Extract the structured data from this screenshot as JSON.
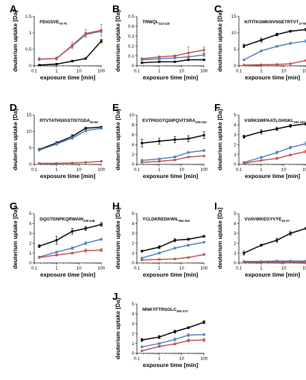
{
  "colors": {
    "black": "#000000",
    "blue": "#4F81BD",
    "red": "#C0504D"
  },
  "chart_data": [
    {
      "type": "line",
      "panel": "A",
      "peptide": "FEIGSVE",
      "peptide_sub": "70-76",
      "xlabel": "exposure time [min]",
      "ylabel": "deuterium uptake [Da]",
      "x": [
        0.167,
        1,
        5,
        20,
        100
      ],
      "xscale": "log",
      "xlim": [
        0.1,
        100
      ],
      "xticks": [
        "0.1",
        "1",
        "10",
        "100"
      ],
      "ylim": [
        0,
        1.5
      ],
      "yticks": [
        "0",
        "0.5",
        "1",
        "1.5"
      ],
      "series": [
        {
          "color": "black",
          "values": [
            0.02,
            0.05,
            0.14,
            0.22,
            0.75
          ],
          "errors": [
            0.02,
            0.02,
            0.03,
            0.03,
            0.05
          ]
        },
        {
          "color": "blue",
          "values": [
            0.2,
            0.22,
            0.6,
            0.95,
            1.05
          ],
          "errors": [
            0.02,
            0.03,
            0.05,
            0.06,
            0.05
          ]
        },
        {
          "color": "red",
          "values": [
            0.2,
            0.22,
            0.62,
            0.98,
            1.08
          ],
          "errors": [
            0.05,
            0.05,
            0.1,
            0.12,
            0.18
          ]
        }
      ]
    },
    {
      "type": "line",
      "panel": "B",
      "peptide": "TRWQL",
      "peptide_sub": "114-118",
      "xlabel": "exposure time [min]",
      "ylabel": "deuterium uptake [Da]",
      "x": [
        0.167,
        1,
        5,
        20,
        100
      ],
      "xscale": "log",
      "xlim": [
        0.1,
        100
      ],
      "xticks": [
        "0.1",
        "1",
        "10",
        "100"
      ],
      "ylim": [
        0,
        0.5
      ],
      "yticks": [
        "0",
        "0.1",
        "0.2",
        "0.3",
        "0.4",
        "0.5"
      ],
      "series": [
        {
          "color": "black",
          "values": [
            0.03,
            0.04,
            0.04,
            0.06,
            0.06
          ],
          "errors": [
            0.005,
            0.005,
            0.005,
            0.008,
            0.008
          ]
        },
        {
          "color": "blue",
          "values": [
            0.06,
            0.07,
            0.08,
            0.09,
            0.11
          ],
          "errors": [
            0.01,
            0.01,
            0.01,
            0.01,
            0.015
          ]
        },
        {
          "color": "red",
          "values": [
            0.07,
            0.09,
            0.1,
            0.13,
            0.16
          ],
          "errors": [
            0.01,
            0.01,
            0.01,
            0.06,
            0.03
          ]
        }
      ]
    },
    {
      "type": "line",
      "panel": "C",
      "peptide": "KITITKGMKNVNSETRTVT",
      "peptide_sub": "37-55",
      "xlabel": "exposure time [min]",
      "ylabel": "deuterium uptake [Da]",
      "x": [
        0.167,
        1,
        5,
        20,
        100
      ],
      "xscale": "log",
      "xlim": [
        0.1,
        100
      ],
      "xticks": [
        "0.1",
        "1",
        "10",
        "100"
      ],
      "ylim": [
        0,
        15
      ],
      "yticks": [
        "0",
        "5",
        "10",
        "15"
      ],
      "series": [
        {
          "color": "black",
          "values": [
            6.0,
            7.8,
            9.5,
            10.5,
            11.0
          ],
          "errors": [
            0.5,
            0.6,
            0.4,
            0.3,
            0.4
          ]
        },
        {
          "color": "blue",
          "values": [
            1.8,
            4.5,
            5.9,
            6.8,
            7.5
          ],
          "errors": [
            0.2,
            0.3,
            0.3,
            0.3,
            0.4
          ]
        },
        {
          "color": "red",
          "values": [
            0.2,
            0.3,
            0.4,
            0.6,
            1.6
          ],
          "errors": [
            0.05,
            0.05,
            0.05,
            0.1,
            0.2
          ]
        }
      ]
    },
    {
      "type": "line",
      "panel": "D",
      "peptide": "RTVTATHSIGSTISTGDA",
      "peptide_sub": "52-69",
      "xlabel": "exposure time [min]",
      "ylabel": "deuterium uptake [Da]",
      "x": [
        0.167,
        1,
        5,
        20,
        100
      ],
      "xscale": "log",
      "xlim": [
        0.1,
        100
      ],
      "xticks": [
        "0.1",
        "1",
        "10",
        "100"
      ],
      "ylim": [
        0,
        15
      ],
      "yticks": [
        "0",
        "5",
        "10",
        "15"
      ],
      "series": [
        {
          "color": "black",
          "values": [
            4.5,
            6.5,
            8.5,
            11.0,
            11.3
          ],
          "errors": [
            0.3,
            0.4,
            0.5,
            0.3,
            0.3
          ]
        },
        {
          "color": "blue",
          "values": [
            4.3,
            6.2,
            8.0,
            10.2,
            11.0
          ],
          "errors": [
            0.3,
            0.4,
            0.4,
            0.3,
            0.3
          ]
        },
        {
          "color": "red",
          "values": [
            0.3,
            0.3,
            0.4,
            0.6,
            0.9
          ],
          "errors": [
            0.05,
            0.05,
            0.05,
            0.05,
            0.1
          ]
        }
      ]
    },
    {
      "type": "line",
      "panel": "E",
      "peptide": "EVTPIGGTQSIPQVITSRA",
      "peptide_sub": "135-153",
      "xlabel": "exposure time [min]",
      "ylabel": "deuterium uptake [Da]",
      "x": [
        0.167,
        1,
        5,
        20,
        100
      ],
      "xscale": "log",
      "xlim": [
        0.1,
        100
      ],
      "xticks": [
        "0.1",
        "1",
        "10",
        "100"
      ],
      "ylim": [
        0,
        10
      ],
      "yticks": [
        "0",
        "2",
        "4",
        "6",
        "8",
        "10"
      ],
      "series": [
        {
          "color": "black",
          "values": [
            4.3,
            4.7,
            5.0,
            5.2,
            5.9
          ],
          "errors": [
            0.8,
            0.6,
            0.6,
            0.6,
            0.7
          ]
        },
        {
          "color": "blue",
          "values": [
            0.8,
            1.1,
            1.5,
            2.4,
            2.8
          ],
          "errors": [
            0.2,
            0.2,
            0.2,
            0.2,
            0.2
          ]
        },
        {
          "color": "red",
          "values": [
            0.4,
            0.6,
            0.9,
            1.5,
            1.7
          ],
          "errors": [
            0.1,
            0.1,
            0.1,
            0.1,
            0.1
          ]
        }
      ]
    },
    {
      "type": "line",
      "panel": "F",
      "peptide": "VSRKSWPAATLGHSKL",
      "peptide_sub": "182-197",
      "xlabel": "exposure time [min]",
      "ylabel": "deuterium uptake [Da]",
      "x": [
        0.167,
        1,
        5,
        20,
        100
      ],
      "xscale": "log",
      "xlim": [
        0.1,
        100
      ],
      "xticks": [
        "0.1",
        "1",
        "10",
        "100"
      ],
      "ylim": [
        0,
        5
      ],
      "yticks": [
        "0",
        "1",
        "2",
        "3",
        "4",
        "5"
      ],
      "series": [
        {
          "color": "black",
          "values": [
            2.8,
            3.3,
            3.6,
            3.9,
            4.1
          ],
          "errors": [
            0.15,
            0.2,
            0.15,
            0.15,
            0.15
          ]
        },
        {
          "color": "blue",
          "values": [
            0.2,
            0.7,
            1.2,
            1.7,
            2.1
          ],
          "errors": [
            0.05,
            0.1,
            0.15,
            0.15,
            0.2
          ]
        },
        {
          "color": "red",
          "values": [
            0.1,
            0.4,
            0.6,
            0.95,
            1.3
          ],
          "errors": [
            0.05,
            0.05,
            0.1,
            0.1,
            0.15
          ]
        }
      ]
    },
    {
      "type": "line",
      "panel": "G",
      "peptide": "DQGTDNPKQRWAIN",
      "peptide_sub": "235-248",
      "xlabel": "exposure time [min]",
      "ylabel": "deuterium uptake [Da]",
      "x": [
        0.167,
        1,
        5,
        20,
        100
      ],
      "xscale": "log",
      "xlim": [
        0.1,
        100
      ],
      "xticks": [
        "0.1",
        "1",
        "10",
        "100"
      ],
      "ylim": [
        0,
        5
      ],
      "yticks": [
        "0",
        "1",
        "2",
        "3",
        "4",
        "5"
      ],
      "series": [
        {
          "color": "black",
          "values": [
            1.7,
            2.3,
            3.2,
            3.5,
            3.9
          ],
          "errors": [
            0.15,
            0.4,
            0.3,
            0.2,
            0.2
          ]
        },
        {
          "color": "blue",
          "values": [
            0.6,
            1.1,
            1.5,
            2.0,
            2.4
          ],
          "errors": [
            0.05,
            0.1,
            0.15,
            0.15,
            0.1
          ]
        },
        {
          "color": "red",
          "values": [
            0.55,
            0.8,
            1.0,
            1.25,
            1.3
          ],
          "errors": [
            0.05,
            0.1,
            0.1,
            0.15,
            0.15
          ]
        }
      ]
    },
    {
      "type": "line",
      "panel": "H",
      "peptide": "YCLDKREDKWIL",
      "peptide_sub": "282-293",
      "xlabel": "exposure time [min]",
      "ylabel": "deuterium uptake [Da]",
      "x": [
        0.167,
        1,
        5,
        20,
        100
      ],
      "xscale": "log",
      "xlim": [
        0.1,
        100
      ],
      "xticks": [
        "0.1",
        "1",
        "10",
        "100"
      ],
      "ylim": [
        0,
        5
      ],
      "yticks": [
        "0",
        "1",
        "2",
        "3",
        "4",
        "5"
      ],
      "series": [
        {
          "color": "black",
          "values": [
            1.2,
            1.6,
            2.3,
            2.4,
            2.7
          ],
          "errors": [
            0.1,
            0.15,
            0.15,
            0.1,
            0.1
          ]
        },
        {
          "color": "blue",
          "values": [
            0.5,
            1.0,
            1.5,
            1.8,
            2.1
          ],
          "errors": [
            0.05,
            0.1,
            0.1,
            0.1,
            0.1
          ]
        },
        {
          "color": "red",
          "values": [
            0.3,
            0.35,
            0.4,
            0.55,
            0.85
          ],
          "errors": [
            0.05,
            0.05,
            0.05,
            0.05,
            0.1
          ]
        }
      ]
    },
    {
      "type": "line",
      "panel": "I",
      "peptide": "VVAVWKEGYVYE",
      "peptide_sub": "16-27",
      "xlabel": "exposure time [min]",
      "ylabel": "deuterium uptake [Da]",
      "x": [
        0.167,
        1,
        5,
        20,
        100
      ],
      "xscale": "log",
      "xlim": [
        0.1,
        100
      ],
      "xticks": [
        "0.1",
        "1",
        "10",
        "100"
      ],
      "ylim": [
        0,
        5
      ],
      "yticks": [
        "0",
        "1",
        "2",
        "3",
        "4",
        "5"
      ],
      "series": [
        {
          "color": "black",
          "values": [
            1.0,
            1.8,
            2.3,
            3.0,
            3.5
          ],
          "errors": [
            0.2,
            0.1,
            0.2,
            0.2,
            0.1
          ]
        },
        {
          "color": "blue",
          "values": [
            0.15,
            0.15,
            0.2,
            0.2,
            0.2
          ],
          "errors": [
            0.03,
            0.03,
            0.03,
            0.03,
            0.03
          ]
        },
        {
          "color": "red",
          "values": [
            0.1,
            0.1,
            0.1,
            0.1,
            0.1
          ],
          "errors": [
            0.02,
            0.02,
            0.02,
            0.02,
            0.02
          ]
        }
      ]
    },
    {
      "type": "line",
      "panel": "J",
      "peptide": "MNKYFTRSGLC",
      "peptide_sub": "262-272",
      "xlabel": "exposure time [min]",
      "ylabel": "deuterium uptake [Da]",
      "x": [
        0.167,
        1,
        5,
        20,
        100
      ],
      "xscale": "log",
      "xlim": [
        0.1,
        100
      ],
      "xticks": [
        "0.1",
        "1",
        "10",
        "100"
      ],
      "ylim": [
        0,
        5
      ],
      "yticks": [
        "0",
        "1",
        "2",
        "3",
        "4",
        "5"
      ],
      "series": [
        {
          "color": "black",
          "values": [
            1.35,
            1.65,
            2.2,
            2.6,
            3.15
          ],
          "errors": [
            0.15,
            0.15,
            0.15,
            0.1,
            0.15
          ]
        },
        {
          "color": "blue",
          "values": [
            0.65,
            1.0,
            1.4,
            1.85,
            1.9
          ],
          "errors": [
            0.1,
            0.1,
            0.15,
            0.15,
            0.1
          ]
        },
        {
          "color": "red",
          "values": [
            0.25,
            0.7,
            0.95,
            1.3,
            1.35
          ],
          "errors": [
            0.05,
            0.1,
            0.1,
            0.15,
            0.15
          ]
        }
      ]
    }
  ]
}
